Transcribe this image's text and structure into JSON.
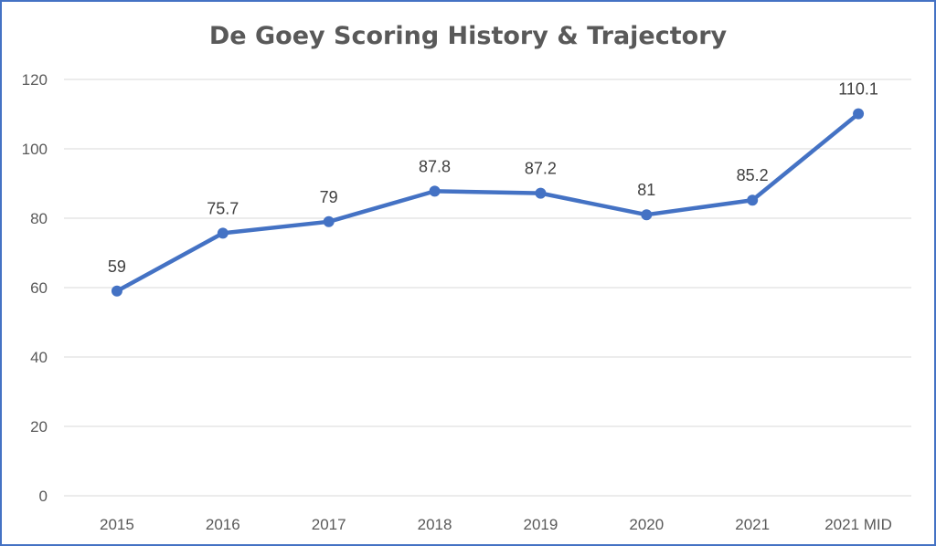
{
  "chart_data": {
    "type": "line",
    "title": "De Goey Scoring History & Trajectory",
    "xlabel": "",
    "ylabel": "",
    "categories": [
      "2015",
      "2016",
      "2017",
      "2018",
      "2019",
      "2020",
      "2021",
      "2021 MID"
    ],
    "series": [
      {
        "values": [
          59,
          75.7,
          79,
          87.8,
          87.2,
          81,
          85.2,
          110.1
        ],
        "data_labels": [
          "59",
          "75.7",
          "79",
          "87.8",
          "87.2",
          "81",
          "85.2",
          "110.1"
        ],
        "color": "#4472c4"
      }
    ],
    "ylim": [
      0,
      120
    ],
    "yticks": [
      0,
      20,
      40,
      60,
      80,
      100,
      120
    ],
    "grid": true,
    "legend": "none",
    "markers": true
  },
  "colors": {
    "border": "#4472c4",
    "grid": "#d9d9d9",
    "text": "#595959"
  }
}
